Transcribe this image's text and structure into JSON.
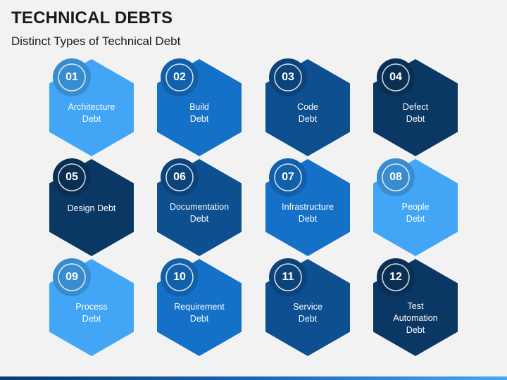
{
  "header": {
    "title": "TECHNICAL DEBTS",
    "subtitle": "Distinct Types of Technical Debt"
  },
  "colors": {
    "light": "#42a5f5",
    "medium": "#1570c8",
    "dark": "#0d4f8f",
    "navy": "#0a3764"
  },
  "items": [
    {
      "num": "01",
      "lines": [
        "Architecture",
        "Debt"
      ],
      "color": "light"
    },
    {
      "num": "02",
      "lines": [
        "Build",
        "Debt"
      ],
      "color": "medium"
    },
    {
      "num": "03",
      "lines": [
        "Code",
        "Debt"
      ],
      "color": "dark"
    },
    {
      "num": "04",
      "lines": [
        "Defect",
        "Debt"
      ],
      "color": "navy"
    },
    {
      "num": "05",
      "lines": [
        "Design Debt"
      ],
      "color": "navy"
    },
    {
      "num": "06",
      "lines": [
        "Documentation",
        "Debt"
      ],
      "color": "dark"
    },
    {
      "num": "07",
      "lines": [
        "Infrastructure",
        "Debt"
      ],
      "color": "medium"
    },
    {
      "num": "08",
      "lines": [
        "People",
        "Debt"
      ],
      "color": "light"
    },
    {
      "num": "09",
      "lines": [
        "Process",
        "Debt"
      ],
      "color": "light"
    },
    {
      "num": "10",
      "lines": [
        "Requirement",
        "Debt"
      ],
      "color": "medium"
    },
    {
      "num": "11",
      "lines": [
        "Service",
        "Debt"
      ],
      "color": "dark"
    },
    {
      "num": "12",
      "lines": [
        "Test",
        "Automation",
        "Debt"
      ],
      "color": "navy"
    }
  ]
}
